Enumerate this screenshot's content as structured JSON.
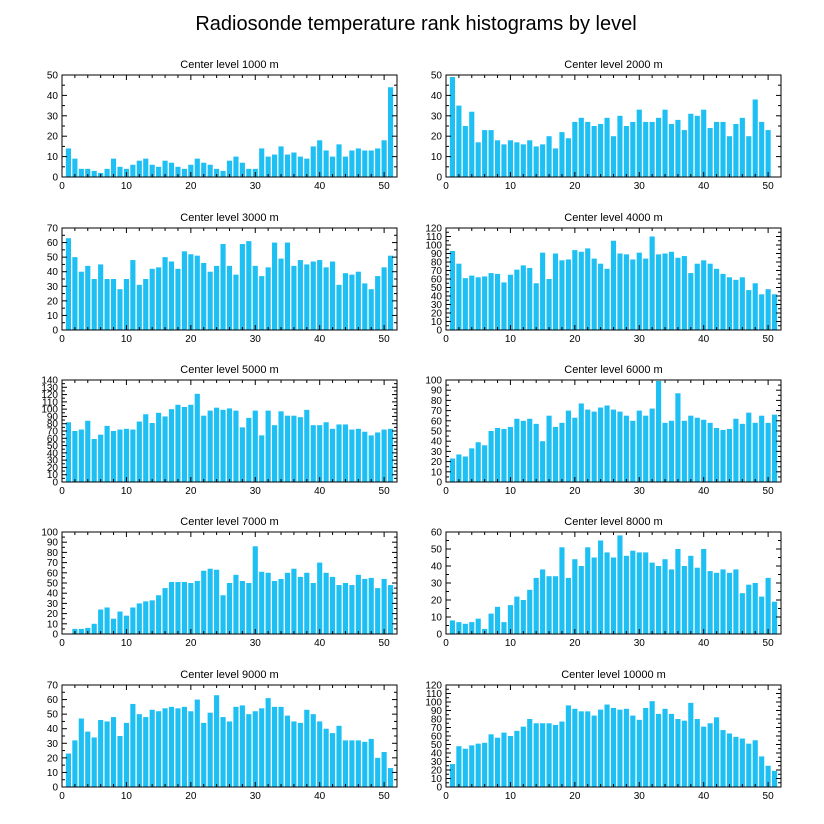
{
  "title": "Radiosonde temperature rank histograms by level",
  "chart_data": [
    {
      "type": "bar",
      "title": "Center level 1000 m",
      "xlim": [
        0,
        52
      ],
      "ylim": [
        0,
        50
      ],
      "xticks": [
        0,
        10,
        20,
        30,
        40,
        50
      ],
      "yticks": [
        0,
        10,
        20,
        30,
        40,
        50
      ],
      "x": [
        1,
        2,
        3,
        4,
        5,
        6,
        7,
        8,
        9,
        10,
        11,
        12,
        13,
        14,
        15,
        16,
        17,
        18,
        19,
        20,
        21,
        22,
        23,
        24,
        25,
        26,
        27,
        28,
        29,
        30,
        31,
        32,
        33,
        34,
        35,
        36,
        37,
        38,
        39,
        40,
        41,
        42,
        43,
        44,
        45,
        46,
        47,
        48,
        49,
        50,
        51
      ],
      "values": [
        14,
        9,
        4,
        4,
        3,
        2,
        4,
        9,
        5,
        4,
        6,
        8,
        9,
        6,
        5,
        8,
        7,
        5,
        4,
        6,
        9,
        7,
        6,
        4,
        3,
        8,
        10,
        7,
        4,
        4,
        14,
        10,
        11,
        15,
        11,
        12,
        10,
        9,
        15,
        18,
        13,
        10,
        16,
        10,
        13,
        14,
        13,
        13,
        14,
        18,
        44
      ]
    },
    {
      "type": "bar",
      "title": "Center level 2000 m",
      "xlim": [
        0,
        52
      ],
      "ylim": [
        0,
        50
      ],
      "xticks": [
        0,
        10,
        20,
        30,
        40,
        50
      ],
      "yticks": [
        0,
        10,
        20,
        30,
        40,
        50
      ],
      "x": [
        1,
        2,
        3,
        4,
        5,
        6,
        7,
        8,
        9,
        10,
        11,
        12,
        13,
        14,
        15,
        16,
        17,
        18,
        19,
        20,
        21,
        22,
        23,
        24,
        25,
        26,
        27,
        28,
        29,
        30,
        31,
        32,
        33,
        34,
        35,
        36,
        37,
        38,
        39,
        40,
        41,
        42,
        43,
        44,
        45,
        46,
        47,
        48,
        49,
        50,
        51
      ],
      "values": [
        49,
        35,
        25,
        32,
        17,
        23,
        23,
        18,
        16,
        18,
        17,
        16,
        18,
        15,
        16,
        20,
        14,
        22,
        19,
        27,
        29,
        27,
        25,
        26,
        29,
        20,
        30,
        25,
        27,
        33,
        27,
        27,
        29,
        33,
        26,
        28,
        23,
        31,
        30,
        33,
        24,
        27,
        27,
        20,
        26,
        29,
        20,
        38,
        27,
        23,
        0
      ]
    },
    {
      "type": "bar",
      "title": "Center level 3000 m",
      "xlim": [
        0,
        52
      ],
      "ylim": [
        0,
        70
      ],
      "xticks": [
        0,
        10,
        20,
        30,
        40,
        50
      ],
      "yticks": [
        0,
        10,
        20,
        30,
        40,
        50,
        60,
        70
      ],
      "x": [
        1,
        2,
        3,
        4,
        5,
        6,
        7,
        8,
        9,
        10,
        11,
        12,
        13,
        14,
        15,
        16,
        17,
        18,
        19,
        20,
        21,
        22,
        23,
        24,
        25,
        26,
        27,
        28,
        29,
        30,
        31,
        32,
        33,
        34,
        35,
        36,
        37,
        38,
        39,
        40,
        41,
        42,
        43,
        44,
        45,
        46,
        47,
        48,
        49,
        50,
        51
      ],
      "values": [
        63,
        50,
        40,
        44,
        35,
        45,
        35,
        35,
        28,
        35,
        48,
        31,
        35,
        42,
        43,
        50,
        47,
        42,
        54,
        52,
        51,
        46,
        40,
        44,
        59,
        44,
        38,
        59,
        61,
        44,
        37,
        43,
        60,
        49,
        60,
        44,
        48,
        45,
        47,
        48,
        43,
        47,
        31,
        39,
        38,
        40,
        32,
        28,
        37,
        43,
        51
      ]
    },
    {
      "type": "bar",
      "title": "Center level 4000 m",
      "xlim": [
        0,
        52
      ],
      "ylim": [
        0,
        120
      ],
      "xticks": [
        0,
        10,
        20,
        30,
        40,
        50
      ],
      "yticks": [
        0,
        10,
        20,
        30,
        40,
        50,
        60,
        70,
        80,
        90,
        100,
        110,
        120
      ],
      "x": [
        1,
        2,
        3,
        4,
        5,
        6,
        7,
        8,
        9,
        10,
        11,
        12,
        13,
        14,
        15,
        16,
        17,
        18,
        19,
        20,
        21,
        22,
        23,
        24,
        25,
        26,
        27,
        28,
        29,
        30,
        31,
        32,
        33,
        34,
        35,
        36,
        37,
        38,
        39,
        40,
        41,
        42,
        43,
        44,
        45,
        46,
        47,
        48,
        49,
        50,
        51
      ],
      "values": [
        93,
        78,
        61,
        64,
        62,
        63,
        67,
        66,
        56,
        65,
        71,
        76,
        73,
        55,
        91,
        60,
        90,
        82,
        83,
        94,
        92,
        96,
        84,
        78,
        72,
        105,
        90,
        89,
        83,
        91,
        84,
        110,
        89,
        90,
        92,
        85,
        87,
        67,
        78,
        82,
        78,
        72,
        66,
        62,
        59,
        62,
        47,
        55,
        42,
        48,
        42
      ]
    },
    {
      "type": "bar",
      "title": "Center level 5000 m",
      "xlim": [
        0,
        52
      ],
      "ylim": [
        0,
        140
      ],
      "xticks": [
        0,
        10,
        20,
        30,
        40,
        50
      ],
      "yticks": [
        0,
        10,
        20,
        30,
        40,
        50,
        60,
        70,
        80,
        90,
        100,
        110,
        120,
        130,
        140
      ],
      "x": [
        1,
        2,
        3,
        4,
        5,
        6,
        7,
        8,
        9,
        10,
        11,
        12,
        13,
        14,
        15,
        16,
        17,
        18,
        19,
        20,
        21,
        22,
        23,
        24,
        25,
        26,
        27,
        28,
        29,
        30,
        31,
        32,
        33,
        34,
        35,
        36,
        37,
        38,
        39,
        40,
        41,
        42,
        43,
        44,
        45,
        46,
        47,
        48,
        49,
        50,
        51
      ],
      "values": [
        82,
        70,
        72,
        84,
        59,
        65,
        77,
        70,
        72,
        73,
        72,
        83,
        93,
        81,
        95,
        90,
        100,
        106,
        103,
        106,
        121,
        91,
        98,
        102,
        99,
        101,
        98,
        75,
        88,
        98,
        64,
        98,
        78,
        97,
        91,
        91,
        89,
        99,
        78,
        78,
        82,
        73,
        79,
        79,
        72,
        73,
        69,
        64,
        68,
        72,
        73
      ]
    },
    {
      "type": "bar",
      "title": "Center level 6000 m",
      "xlim": [
        0,
        52
      ],
      "ylim": [
        0,
        100
      ],
      "xticks": [
        0,
        10,
        20,
        30,
        40,
        50
      ],
      "yticks": [
        0,
        10,
        20,
        30,
        40,
        50,
        60,
        70,
        80,
        90,
        100
      ],
      "x": [
        1,
        2,
        3,
        4,
        5,
        6,
        7,
        8,
        9,
        10,
        11,
        12,
        13,
        14,
        15,
        16,
        17,
        18,
        19,
        20,
        21,
        22,
        23,
        24,
        25,
        26,
        27,
        28,
        29,
        30,
        31,
        32,
        33,
        34,
        35,
        36,
        37,
        38,
        39,
        40,
        41,
        42,
        43,
        44,
        45,
        46,
        47,
        48,
        49,
        50,
        51
      ],
      "values": [
        23,
        27,
        25,
        33,
        39,
        36,
        50,
        53,
        52,
        54,
        62,
        60,
        62,
        57,
        40,
        65,
        54,
        58,
        70,
        63,
        77,
        71,
        69,
        73,
        75,
        71,
        69,
        65,
        60,
        70,
        65,
        72,
        99,
        58,
        60,
        87,
        60,
        65,
        63,
        61,
        58,
        53,
        51,
        52,
        62,
        57,
        68,
        58,
        65,
        58,
        66
      ]
    },
    {
      "type": "bar",
      "title": "Center level 7000 m",
      "xlim": [
        0,
        52
      ],
      "ylim": [
        0,
        100
      ],
      "xticks": [
        0,
        10,
        20,
        30,
        40,
        50
      ],
      "yticks": [
        0,
        10,
        20,
        30,
        40,
        50,
        60,
        70,
        80,
        90,
        100
      ],
      "x": [
        1,
        2,
        3,
        4,
        5,
        6,
        7,
        8,
        9,
        10,
        11,
        12,
        13,
        14,
        15,
        16,
        17,
        18,
        19,
        20,
        21,
        22,
        23,
        24,
        25,
        26,
        27,
        28,
        29,
        30,
        31,
        32,
        33,
        34,
        35,
        36,
        37,
        38,
        39,
        40,
        41,
        42,
        43,
        44,
        45,
        46,
        47,
        48,
        49,
        50,
        51
      ],
      "values": [
        0,
        5,
        5,
        6,
        10,
        24,
        26,
        15,
        22,
        18,
        26,
        30,
        32,
        33,
        38,
        45,
        51,
        51,
        51,
        50,
        52,
        62,
        64,
        63,
        38,
        50,
        58,
        52,
        50,
        86,
        61,
        60,
        52,
        54,
        60,
        64,
        56,
        60,
        50,
        70,
        60,
        56,
        48,
        50,
        48,
        58,
        54,
        55,
        45,
        54,
        48
      ]
    },
    {
      "type": "bar",
      "title": "Center level 8000 m",
      "xlim": [
        0,
        52
      ],
      "ylim": [
        0,
        60
      ],
      "xticks": [
        0,
        10,
        20,
        30,
        40,
        50
      ],
      "yticks": [
        0,
        10,
        20,
        30,
        40,
        50,
        60
      ],
      "x": [
        1,
        2,
        3,
        4,
        5,
        6,
        7,
        8,
        9,
        10,
        11,
        12,
        13,
        14,
        15,
        16,
        17,
        18,
        19,
        20,
        21,
        22,
        23,
        24,
        25,
        26,
        27,
        28,
        29,
        30,
        31,
        32,
        33,
        34,
        35,
        36,
        37,
        38,
        39,
        40,
        41,
        42,
        43,
        44,
        45,
        46,
        47,
        48,
        49,
        50,
        51
      ],
      "values": [
        8,
        7,
        6,
        7,
        9,
        3,
        12,
        16,
        7,
        17,
        22,
        20,
        26,
        33,
        38,
        34,
        34,
        51,
        33,
        44,
        40,
        51,
        45,
        55,
        48,
        45,
        58,
        46,
        49,
        48,
        48,
        42,
        40,
        44,
        38,
        50,
        40,
        46,
        39,
        50,
        37,
        36,
        38,
        36,
        38,
        24,
        29,
        30,
        22,
        33,
        19
      ]
    },
    {
      "type": "bar",
      "title": "Center level 9000 m",
      "xlim": [
        0,
        52
      ],
      "ylim": [
        0,
        70
      ],
      "xticks": [
        0,
        10,
        20,
        30,
        40,
        50
      ],
      "yticks": [
        0,
        10,
        20,
        30,
        40,
        50,
        60,
        70
      ],
      "x": [
        1,
        2,
        3,
        4,
        5,
        6,
        7,
        8,
        9,
        10,
        11,
        12,
        13,
        14,
        15,
        16,
        17,
        18,
        19,
        20,
        21,
        22,
        23,
        24,
        25,
        26,
        27,
        28,
        29,
        30,
        31,
        32,
        33,
        34,
        35,
        36,
        37,
        38,
        39,
        40,
        41,
        42,
        43,
        44,
        45,
        46,
        47,
        48,
        49,
        50,
        51
      ],
      "values": [
        23,
        32,
        47,
        38,
        34,
        46,
        45,
        48,
        35,
        44,
        57,
        50,
        48,
        53,
        52,
        54,
        55,
        54,
        55,
        52,
        60,
        44,
        51,
        63,
        48,
        45,
        55,
        56,
        50,
        52,
        54,
        61,
        55,
        55,
        49,
        45,
        44,
        53,
        50,
        45,
        40,
        37,
        42,
        32,
        32,
        32,
        31,
        33,
        20,
        24,
        13
      ]
    },
    {
      "type": "bar",
      "title": "Center level 10000 m",
      "xlim": [
        0,
        52
      ],
      "ylim": [
        0,
        120
      ],
      "xticks": [
        0,
        10,
        20,
        30,
        40,
        50
      ],
      "yticks": [
        0,
        10,
        20,
        30,
        40,
        50,
        60,
        70,
        80,
        90,
        100,
        110,
        120
      ],
      "x": [
        1,
        2,
        3,
        4,
        5,
        6,
        7,
        8,
        9,
        10,
        11,
        12,
        13,
        14,
        15,
        16,
        17,
        18,
        19,
        20,
        21,
        22,
        23,
        24,
        25,
        26,
        27,
        28,
        29,
        30,
        31,
        32,
        33,
        34,
        35,
        36,
        37,
        38,
        39,
        40,
        41,
        42,
        43,
        44,
        45,
        46,
        47,
        48,
        49,
        50,
        51
      ],
      "values": [
        27,
        48,
        45,
        49,
        51,
        52,
        62,
        58,
        64,
        60,
        66,
        71,
        80,
        75,
        75,
        75,
        73,
        77,
        96,
        92,
        89,
        89,
        84,
        91,
        97,
        93,
        91,
        92,
        84,
        79,
        93,
        101,
        86,
        92,
        86,
        80,
        78,
        99,
        80,
        71,
        75,
        82,
        67,
        63,
        59,
        57,
        51,
        55,
        36,
        25,
        19
      ]
    }
  ]
}
